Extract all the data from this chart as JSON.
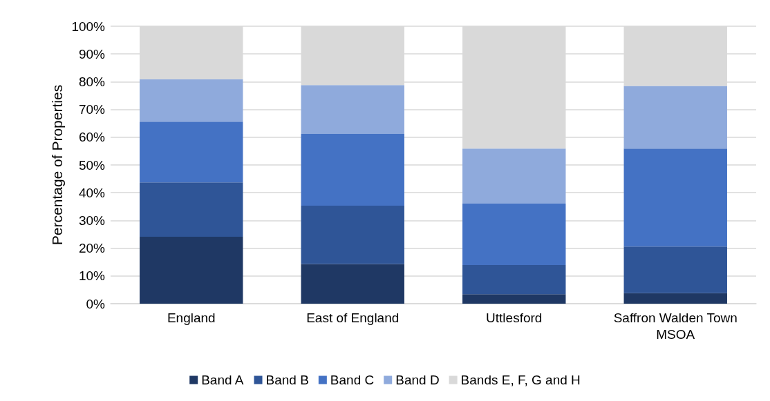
{
  "chart_data": {
    "type": "bar",
    "stacked": true,
    "ylabel": "Percentage of Properties",
    "categories": [
      "England",
      "East of England",
      "Uttlesford",
      "Saffron Walden Town MSOA"
    ],
    "series": [
      {
        "name": "Band A",
        "color": "#1f3864",
        "values": [
          24.1,
          14.3,
          3.4,
          3.8
        ]
      },
      {
        "name": "Band B",
        "color": "#2f5597",
        "values": [
          19.6,
          21.0,
          10.5,
          16.8
        ]
      },
      {
        "name": "Band C",
        "color": "#4472c4",
        "values": [
          21.9,
          25.9,
          22.2,
          35.3
        ]
      },
      {
        "name": "Band D",
        "color": "#8faadc",
        "values": [
          15.3,
          17.6,
          19.8,
          22.6
        ]
      },
      {
        "name": "Bands E, F, G and H",
        "color": "#d9d9d9",
        "values": [
          19.1,
          21.2,
          44.1,
          21.5
        ]
      }
    ],
    "ylim": [
      0,
      100
    ],
    "yticks": [
      {
        "value": 0,
        "label": "0%"
      },
      {
        "value": 10,
        "label": "10%"
      },
      {
        "value": 20,
        "label": "20%"
      },
      {
        "value": 30,
        "label": "30%"
      },
      {
        "value": 40,
        "label": "40%"
      },
      {
        "value": 50,
        "label": "50%"
      },
      {
        "value": 60,
        "label": "60%"
      },
      {
        "value": 70,
        "label": "70%"
      },
      {
        "value": 80,
        "label": "80%"
      },
      {
        "value": 90,
        "label": "90%"
      },
      {
        "value": 100,
        "label": "100%"
      }
    ],
    "grid": "y",
    "legend": "bottom"
  }
}
